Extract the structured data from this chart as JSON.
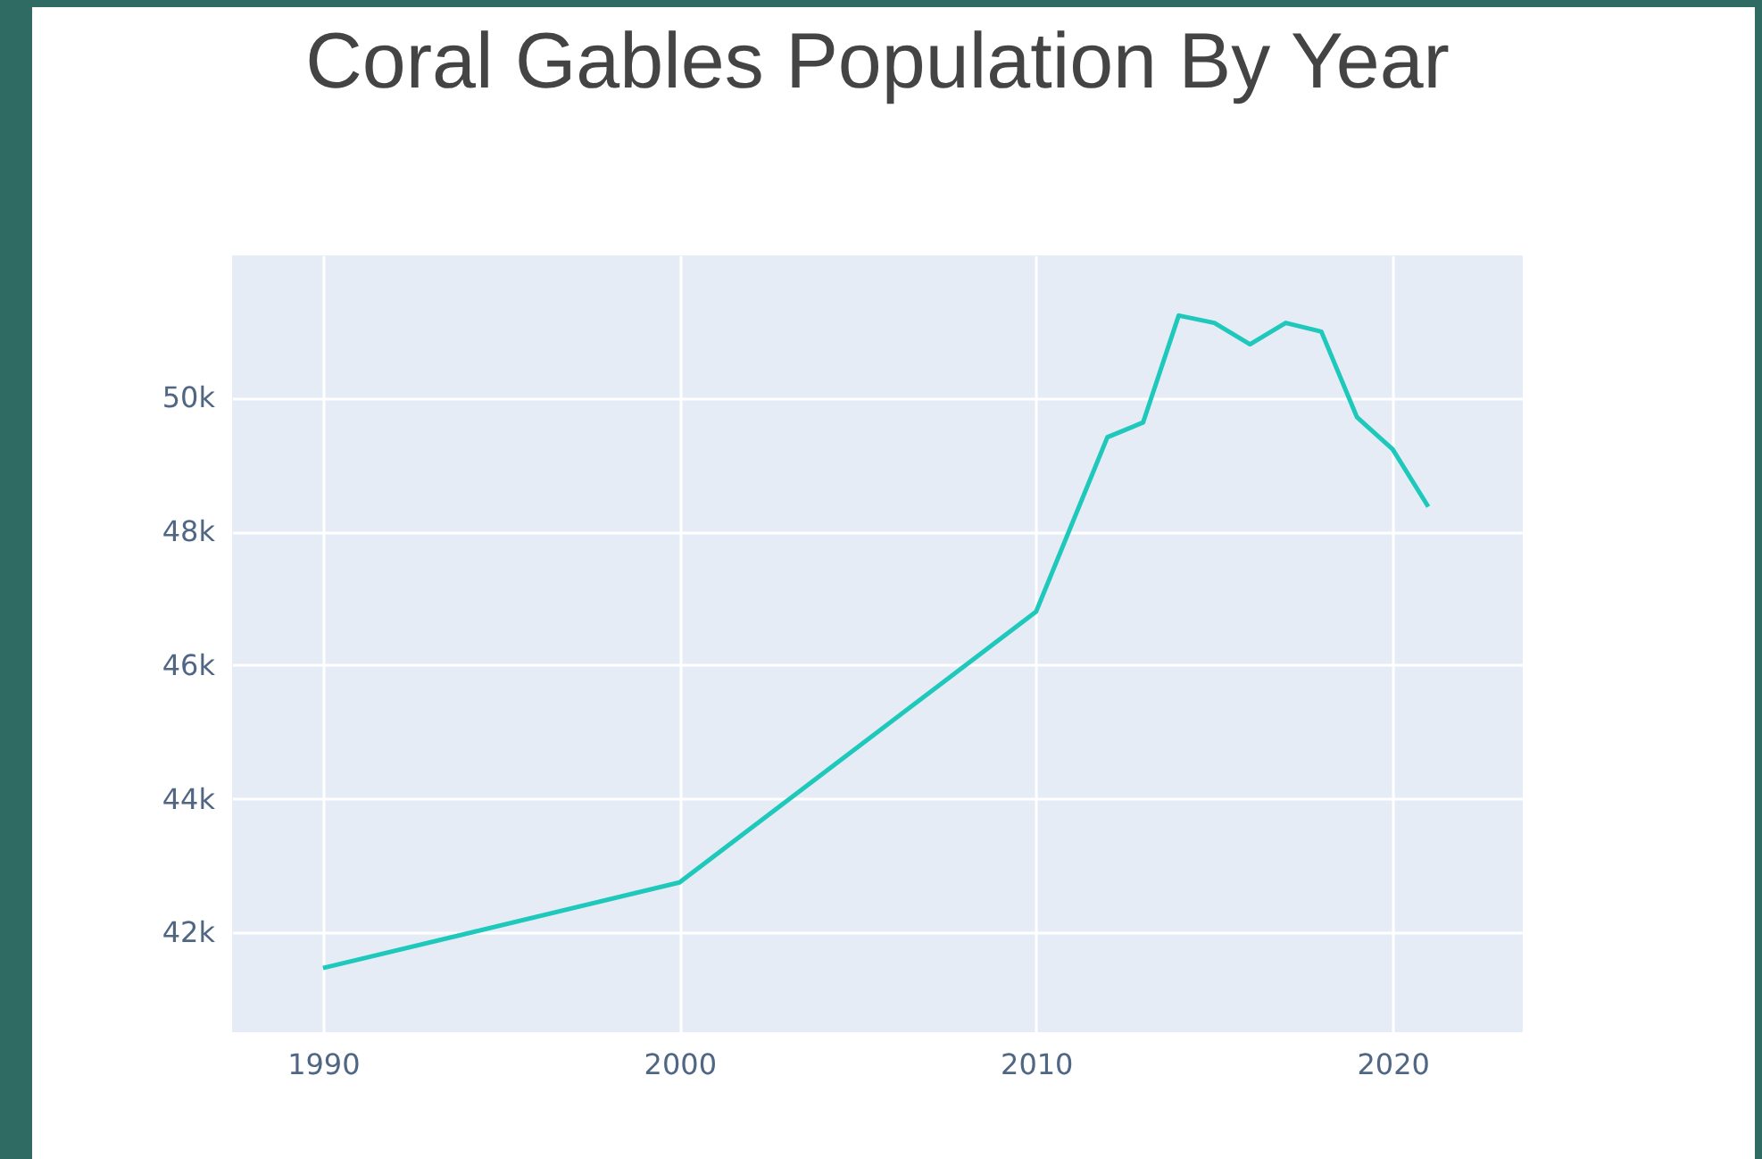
{
  "chart_data": {
    "type": "line",
    "title": "Coral Gables Population By Year",
    "x": [
      1990,
      2000,
      2010,
      2012,
      2013,
      2014,
      2015,
      2016,
      2017,
      2018,
      2019,
      2020,
      2021
    ],
    "series": [
      {
        "color": "#1ec8bb",
        "values": [
          41470,
          42750,
          46800,
          49410,
          49630,
          51230,
          51120,
          50800,
          51120,
          50990,
          49710,
          49230,
          48370
        ]
      }
    ],
    "xlim": [
      1987.45,
      2023.65
    ],
    "xticks": [
      1990,
      2000,
      2010,
      2020
    ],
    "ylim": [
      40510,
      52130
    ],
    "yticks": [
      {
        "value": 42000,
        "label": "42k"
      },
      {
        "value": 44000,
        "label": "44k"
      },
      {
        "value": 46000,
        "label": "46k"
      },
      {
        "value": 48000,
        "label": "48k"
      },
      {
        "value": 50000,
        "label": "50k"
      }
    ],
    "grid": true,
    "marker": "none",
    "line_style": "solid"
  }
}
